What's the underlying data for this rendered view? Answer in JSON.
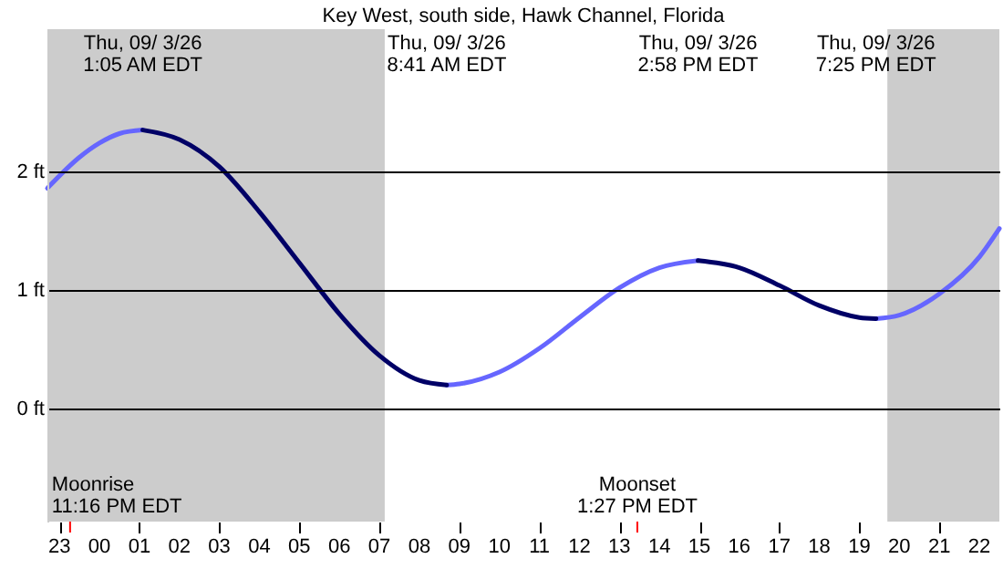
{
  "chart_data": {
    "type": "line",
    "title": "Key West, south side, Hawk Channel, Florida",
    "xlim": [
      "--09-02T22:42",
      "--09-03T22:30"
    ],
    "ylim": [
      -0.95,
      3.2
    ],
    "xticks": [
      {
        "value": "--09-02T23:00",
        "label": "23"
      },
      {
        "value": "--09-03T00:00",
        "label": "00"
      },
      {
        "value": "--09-03T01:00",
        "label": "01"
      },
      {
        "value": "--09-03T02:00",
        "label": "02"
      },
      {
        "value": "--09-03T03:00",
        "label": "03"
      },
      {
        "value": "--09-03T04:00",
        "label": "04"
      },
      {
        "value": "--09-03T05:00",
        "label": "05"
      },
      {
        "value": "--09-03T06:00",
        "label": "06"
      },
      {
        "value": "--09-03T07:00",
        "label": "07"
      },
      {
        "value": "--09-03T08:00",
        "label": "08"
      },
      {
        "value": "--09-03T09:00",
        "label": "09"
      },
      {
        "value": "--09-03T10:00",
        "label": "10"
      },
      {
        "value": "--09-03T11:00",
        "label": "11"
      },
      {
        "value": "--09-03T12:00",
        "label": "12"
      },
      {
        "value": "--09-03T13:00",
        "label": "13"
      },
      {
        "value": "--09-03T14:00",
        "label": "14"
      },
      {
        "value": "--09-03T15:00",
        "label": "15"
      },
      {
        "value": "--09-03T16:00",
        "label": "16"
      },
      {
        "value": "--09-03T17:00",
        "label": "17"
      },
      {
        "value": "--09-03T18:00",
        "label": "18"
      },
      {
        "value": "--09-03T19:00",
        "label": "19"
      },
      {
        "value": "--09-03T20:00",
        "label": "20"
      },
      {
        "value": "--09-03T21:00",
        "label": "21"
      },
      {
        "value": "--09-03T22:00",
        "label": "22"
      }
    ],
    "yticks": [
      {
        "value": 0,
        "label": "0 ft"
      },
      {
        "value": 1,
        "label": "1 ft"
      },
      {
        "value": 2,
        "label": "2 ft"
      }
    ],
    "grid": "y",
    "series": [
      {
        "color": "#6666ff",
        "x": [
          "--09-02T22:42",
          "--09-02T23:30",
          "--09-03T00:00",
          "--09-03T00:30",
          "--09-03T01:05",
          null,
          "--09-03T08:41",
          "--09-03T09:00",
          "--09-03T10:00",
          "--09-03T11:00",
          "--09-03T12:00",
          "--09-03T13:00",
          "--09-03T14:00",
          "--09-03T14:58",
          null,
          "--09-03T19:25",
          "--09-03T20:00",
          "--09-03T21:00",
          "--09-03T22:00",
          "--09-03T22:30"
        ],
        "values": [
          1.86,
          2.12,
          2.24,
          2.32,
          2.35,
          null,
          0.2,
          0.21,
          0.31,
          0.51,
          0.77,
          1.02,
          1.19,
          1.25,
          null,
          0.76,
          0.79,
          0.97,
          1.28,
          1.52
        ]
      },
      {
        "color": "#000066",
        "x": [
          "--09-03T01:05",
          "--09-03T02:00",
          "--09-03T03:00",
          "--09-03T04:00",
          "--09-03T05:00",
          "--09-03T06:00",
          "--09-03T07:00",
          "--09-03T08:00",
          "--09-03T08:41",
          null,
          "--09-03T14:58",
          "--09-03T16:00",
          "--09-03T17:00",
          "--09-03T18:00",
          "--09-03T19:00",
          "--09-03T19:25"
        ],
        "values": [
          2.35,
          2.27,
          2.04,
          1.66,
          1.23,
          0.8,
          0.45,
          0.24,
          0.2,
          null,
          1.25,
          1.19,
          1.04,
          0.87,
          0.77,
          0.76
        ]
      }
    ],
    "bands": [
      {
        "axis": "x",
        "from": "--09-02T22:42",
        "to": "--09-03T07:08",
        "color": "#cccccc"
      },
      {
        "axis": "x",
        "from": "--09-03T19:42",
        "to": "--09-03T22:30",
        "color": "#cccccc"
      }
    ],
    "ref_lines": [
      {
        "axis": "x",
        "value": "--09-02T23:16",
        "label": "Moonrise\n11:16 PM EDT",
        "color": "#ff0000"
      },
      {
        "axis": "x",
        "value": "--09-03T13:27",
        "label": "Moonset\n1:27 PM EDT",
        "color": "#ff0000"
      }
    ],
    "annotations": [
      "Thu, 09/ 3/26\n1:05 AM EDT",
      "Thu, 09/ 3/26\n8:41 AM EDT",
      "Thu, 09/ 3/26\n2:58 PM EDT",
      "Thu, 09/ 3/26\n7:25 PM EDT"
    ]
  }
}
